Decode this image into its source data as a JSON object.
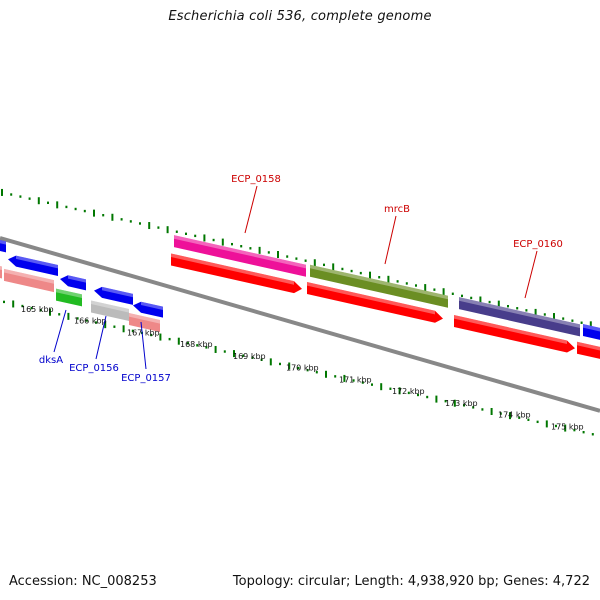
{
  "title": "Escherichia coli 536, complete genome",
  "footer": {
    "accession": "Accession: NC_008253",
    "summary": "Topology: circular; Length: 4,938,920 bp; Genes: 4,722"
  },
  "colors": {
    "forward_label": "#cc0000",
    "reverse_label": "#0000cc",
    "backbone": "#888888",
    "gc_ticks": "#007700",
    "cds": "#ff0000"
  },
  "scale": {
    "ticks": [
      {
        "label": "165 kbp",
        "kbp": 165
      },
      {
        "label": "166 kbp",
        "kbp": 166
      },
      {
        "label": "167 kbp",
        "kbp": 167
      },
      {
        "label": "168 kbp",
        "kbp": 168
      },
      {
        "label": "169 kbp",
        "kbp": 169
      },
      {
        "label": "170 kbp",
        "kbp": 170
      },
      {
        "label": "171 kbp",
        "kbp": 171
      },
      {
        "label": "172 kbp",
        "kbp": 172
      },
      {
        "label": "173 kbp",
        "kbp": 173
      },
      {
        "label": "174 kbp",
        "kbp": 174
      },
      {
        "label": "175 kbp",
        "kbp": 175
      }
    ]
  },
  "gene_labels": {
    "forward": [
      {
        "name": "ECP_0158"
      },
      {
        "name": "mrcB"
      },
      {
        "name": "ECP_0160"
      }
    ],
    "reverse": [
      {
        "name": "dksA"
      },
      {
        "name": "ECP_0156"
      },
      {
        "name": "ECP_0157"
      }
    ]
  },
  "features": [
    {
      "name": "ECP_0158",
      "strand": "forward",
      "color": "#ee1199"
    },
    {
      "name": "mrcB",
      "strand": "forward",
      "color": "#6b8e23"
    },
    {
      "name": "ECP_0160",
      "strand": "forward",
      "color": "#483d8b"
    },
    {
      "name": "dksA",
      "strand": "reverse",
      "color": "#22bb22"
    },
    {
      "name": "ECP_0156",
      "strand": "reverse",
      "color": "#bbbbbb"
    },
    {
      "name": "ECP_0157",
      "strand": "reverse",
      "color": "#ee8888"
    }
  ]
}
